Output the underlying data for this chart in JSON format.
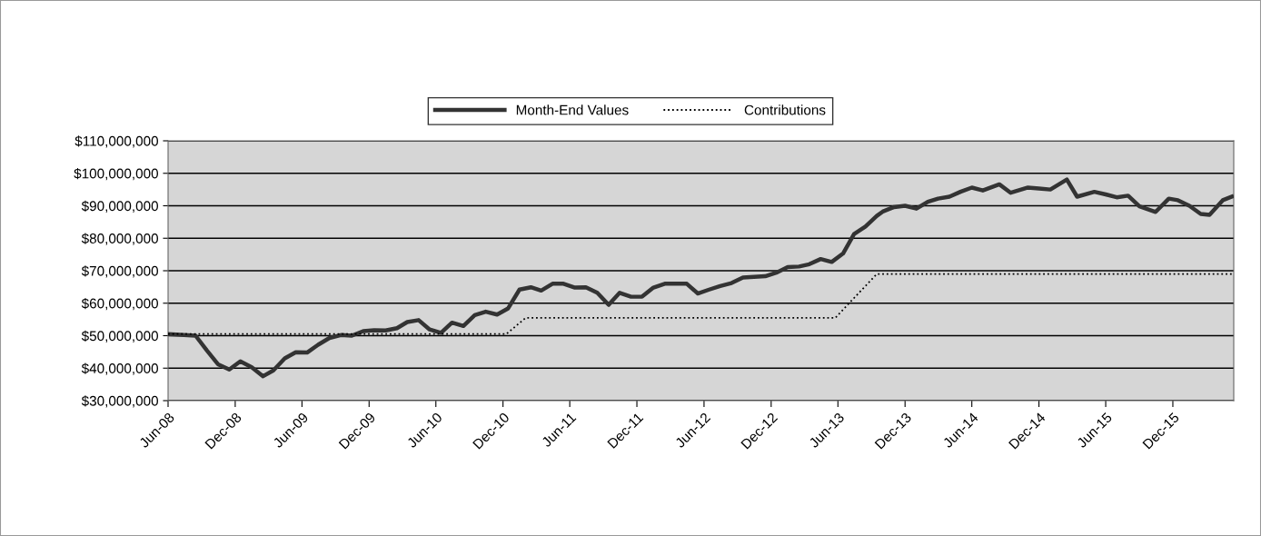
{
  "chart_data": {
    "type": "line",
    "xlim": [
      "2008-06-01",
      "2016-05-15"
    ],
    "xticks": [
      {
        "value": "2008-06-01",
        "label": "Jun-08"
      },
      {
        "value": "2008-12-01",
        "label": "Dec-08"
      },
      {
        "value": "2009-06-01",
        "label": "Jun-09"
      },
      {
        "value": "2009-12-01",
        "label": "Dec-09"
      },
      {
        "value": "2010-06-01",
        "label": "Jun-10"
      },
      {
        "value": "2010-12-01",
        "label": "Dec-10"
      },
      {
        "value": "2011-06-01",
        "label": "Jun-11"
      },
      {
        "value": "2011-12-01",
        "label": "Dec-11"
      },
      {
        "value": "2012-06-01",
        "label": "Jun-12"
      },
      {
        "value": "2012-12-01",
        "label": "Dec-12"
      },
      {
        "value": "2013-06-01",
        "label": "Jun-13"
      },
      {
        "value": "2013-12-01",
        "label": "Dec-13"
      },
      {
        "value": "2014-06-01",
        "label": "Jun-14"
      },
      {
        "value": "2014-12-01",
        "label": "Dec-14"
      },
      {
        "value": "2015-06-01",
        "label": "Jun-15"
      },
      {
        "value": "2015-12-01",
        "label": "Dec-15"
      }
    ],
    "ylim": [
      30000000,
      110000000
    ],
    "yticks": [
      {
        "value": 30000000,
        "label": "$30,000,000"
      },
      {
        "value": 40000000,
        "label": "$40,000,000"
      },
      {
        "value": 50000000,
        "label": "$50,000,000"
      },
      {
        "value": 60000000,
        "label": "$60,000,000"
      },
      {
        "value": 70000000,
        "label": "$70,000,000"
      },
      {
        "value": 80000000,
        "label": "$80,000,000"
      },
      {
        "value": 90000000,
        "label": "$90,000,000"
      },
      {
        "value": 100000000,
        "label": "$100,000,000"
      },
      {
        "value": 110000000,
        "label": "$110,000,000"
      }
    ],
    "grid": "y",
    "legend": "top",
    "series": [
      {
        "name": "Month-End Values",
        "color": "#333333",
        "line_style": "solid",
        "x": [
          "2008-06-01",
          "2008-08-15",
          "2008-09-15",
          "2008-10-15",
          "2008-11-15",
          "2008-12-15",
          "2009-01-15",
          "2009-02-15",
          "2009-03-15",
          "2009-04-15",
          "2009-05-15",
          "2009-06-15",
          "2009-07-15",
          "2009-08-15",
          "2009-09-15",
          "2009-10-15",
          "2009-11-15",
          "2009-12-15",
          "2010-01-15",
          "2010-02-15",
          "2010-03-15",
          "2010-04-15",
          "2010-05-15",
          "2010-06-15",
          "2010-07-15",
          "2010-08-15",
          "2010-09-15",
          "2010-10-15",
          "2010-11-15",
          "2010-12-15",
          "2011-01-15",
          "2011-02-15",
          "2011-03-15",
          "2011-04-15",
          "2011-05-15",
          "2011-06-15",
          "2011-07-15",
          "2011-08-15",
          "2011-09-15",
          "2011-10-15",
          "2011-11-15",
          "2011-12-15",
          "2012-01-15",
          "2012-02-15",
          "2012-03-15",
          "2012-04-15",
          "2012-05-15",
          "2012-06-15",
          "2012-07-15",
          "2012-08-15",
          "2012-09-15",
          "2012-10-15",
          "2012-11-15",
          "2012-12-15",
          "2013-01-15",
          "2013-02-15",
          "2013-03-15",
          "2013-04-15",
          "2013-05-15",
          "2013-06-15",
          "2013-07-15",
          "2013-08-15",
          "2013-09-15",
          "2013-10-01",
          "2013-11-01",
          "2013-12-01",
          "2014-01-01",
          "2014-02-01",
          "2014-03-01",
          "2014-04-01",
          "2014-05-01",
          "2014-06-01",
          "2014-07-01",
          "2014-08-15",
          "2014-09-15",
          "2014-11-01",
          "2014-12-01",
          "2015-01-01",
          "2015-02-15",
          "2015-03-15",
          "2015-05-01",
          "2015-06-01",
          "2015-07-01",
          "2015-08-01",
          "2015-09-01",
          "2015-10-15",
          "2015-11-20",
          "2015-12-15",
          "2016-01-15",
          "2016-02-15",
          "2016-03-10",
          "2016-04-15",
          "2016-05-10"
        ],
        "values": [
          50500000,
          50000000,
          45400000,
          41200000,
          39600000,
          42100000,
          40300000,
          37500000,
          39300000,
          43000000,
          44900000,
          44800000,
          47200000,
          49300000,
          50200000,
          50000000,
          51400000,
          51700000,
          51600000,
          52300000,
          54200000,
          54800000,
          51900000,
          50900000,
          54000000,
          53000000,
          56300000,
          57400000,
          56500000,
          58400000,
          64200000,
          64900000,
          63900000,
          66000000,
          66000000,
          64800000,
          64900000,
          63200000,
          59500000,
          63200000,
          62000000,
          62000000,
          64800000,
          66000000,
          66000000,
          66000000,
          63000000,
          64200000,
          65300000,
          66200000,
          67900000,
          68100000,
          68300000,
          69400000,
          71100000,
          71300000,
          72000000,
          73600000,
          72700000,
          75300000,
          81300000,
          83600000,
          86900000,
          88200000,
          89600000,
          90000000,
          89100000,
          91200000,
          92200000,
          92800000,
          94300000,
          95600000,
          94700000,
          96600000,
          94000000,
          95600000,
          95300000,
          95000000,
          98100000,
          92800000,
          94300000,
          93500000,
          92600000,
          93100000,
          89800000,
          88100000,
          92200000,
          91700000,
          90000000,
          87500000,
          87200000,
          91700000,
          92800000
        ]
      },
      {
        "name": "Contributions",
        "color": "#000000",
        "line_style": "dotted",
        "x": [
          "2008-06-01",
          "2010-12-10",
          "2011-02-01",
          "2013-05-25",
          "2013-09-15",
          "2016-05-10"
        ],
        "values": [
          50500000,
          50500000,
          55500000,
          55500000,
          69000000,
          69000000
        ]
      }
    ]
  }
}
